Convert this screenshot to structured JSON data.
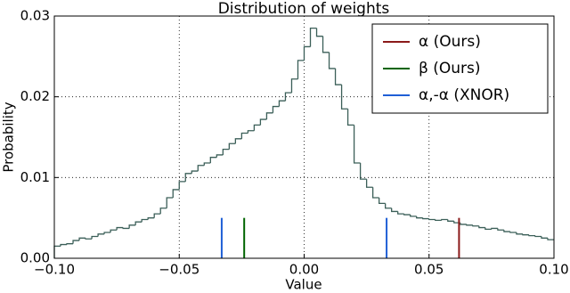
{
  "chart_data": {
    "type": "histogram",
    "title": "Distribution of weights",
    "xlabel": "Value",
    "ylabel": "Probability",
    "xlim": [
      -0.1,
      0.1
    ],
    "ylim": [
      0,
      0.03
    ],
    "xticks": [
      {
        "value": -0.1,
        "label": "−0.10"
      },
      {
        "value": -0.05,
        "label": "−0.05"
      },
      {
        "value": 0,
        "label": "0.00"
      },
      {
        "value": 0.05,
        "label": "0.05"
      },
      {
        "value": 0.1,
        "label": "0.10"
      }
    ],
    "yticks": [
      {
        "value": 0,
        "label": "0.00"
      },
      {
        "value": 0.01,
        "label": "0.01"
      },
      {
        "value": 0.02,
        "label": "0.02"
      },
      {
        "value": 0.03,
        "label": "0.03"
      }
    ],
    "grid": true,
    "legend": "upper right",
    "color": "#3b5f58",
    "bins": [
      -0.1,
      -0.0975,
      -0.095,
      -0.0925,
      -0.09,
      -0.0875,
      -0.085,
      -0.0825,
      -0.08,
      -0.0775,
      -0.075,
      -0.0725,
      -0.07,
      -0.0675,
      -0.065,
      -0.0625,
      -0.06,
      -0.0575,
      -0.055,
      -0.0525,
      -0.05,
      -0.0475,
      -0.045,
      -0.0425,
      -0.04,
      -0.0375,
      -0.035,
      -0.0325,
      -0.03,
      -0.0275,
      -0.025,
      -0.0225,
      -0.02,
      -0.0175,
      -0.015,
      -0.0125,
      -0.01,
      -0.0075,
      -0.005,
      -0.0025,
      0,
      0.0025,
      0.005,
      0.0075,
      0.01,
      0.0125,
      0.015,
      0.0175,
      0.02,
      0.0225,
      0.025,
      0.0275,
      0.03,
      0.0325,
      0.035,
      0.0375,
      0.04,
      0.0425,
      0.045,
      0.0475,
      0.05,
      0.0525,
      0.055,
      0.0575,
      0.06,
      0.0625,
      0.065,
      0.0675,
      0.07,
      0.0725,
      0.075,
      0.0775,
      0.08,
      0.0825,
      0.085,
      0.0875,
      0.09,
      0.0925,
      0.095,
      0.0975,
      0.1
    ],
    "values": [
      0.0015,
      0.0017,
      0.0018,
      0.0022,
      0.0025,
      0.0024,
      0.0027,
      0.003,
      0.0032,
      0.0035,
      0.0038,
      0.0037,
      0.0041,
      0.0045,
      0.0048,
      0.005,
      0.0055,
      0.0062,
      0.0075,
      0.0085,
      0.0095,
      0.0105,
      0.0108,
      0.0115,
      0.0118,
      0.0125,
      0.0128,
      0.0135,
      0.0142,
      0.0148,
      0.0155,
      0.0158,
      0.0165,
      0.0172,
      0.018,
      0.0188,
      0.0195,
      0.0205,
      0.0222,
      0.0245,
      0.0262,
      0.0285,
      0.0275,
      0.0255,
      0.0235,
      0.0215,
      0.0185,
      0.0165,
      0.0118,
      0.0098,
      0.0088,
      0.0075,
      0.0068,
      0.0062,
      0.0058,
      0.0055,
      0.0054,
      0.0052,
      0.005,
      0.0049,
      0.0048,
      0.0047,
      0.0048,
      0.0046,
      0.0044,
      0.0042,
      0.0041,
      0.004,
      0.0038,
      0.0036,
      0.0037,
      0.0035,
      0.0033,
      0.0032,
      0.003,
      0.0029,
      0.0028,
      0.0027,
      0.0025,
      0.0023
    ],
    "series": [
      {
        "name": "α (Ours)",
        "color": "#8b1a1a",
        "x": [
          0.062
        ],
        "values": [
          0.005
        ]
      },
      {
        "name": "β (Ours)",
        "color": "#006400",
        "x": [
          -0.024
        ],
        "values": [
          0.005
        ]
      },
      {
        "name": "α,-α (XNOR)",
        "color": "#1f5fd6",
        "x": [
          -0.033,
          0.033
        ],
        "values": [
          0.005,
          0.005
        ]
      }
    ]
  }
}
